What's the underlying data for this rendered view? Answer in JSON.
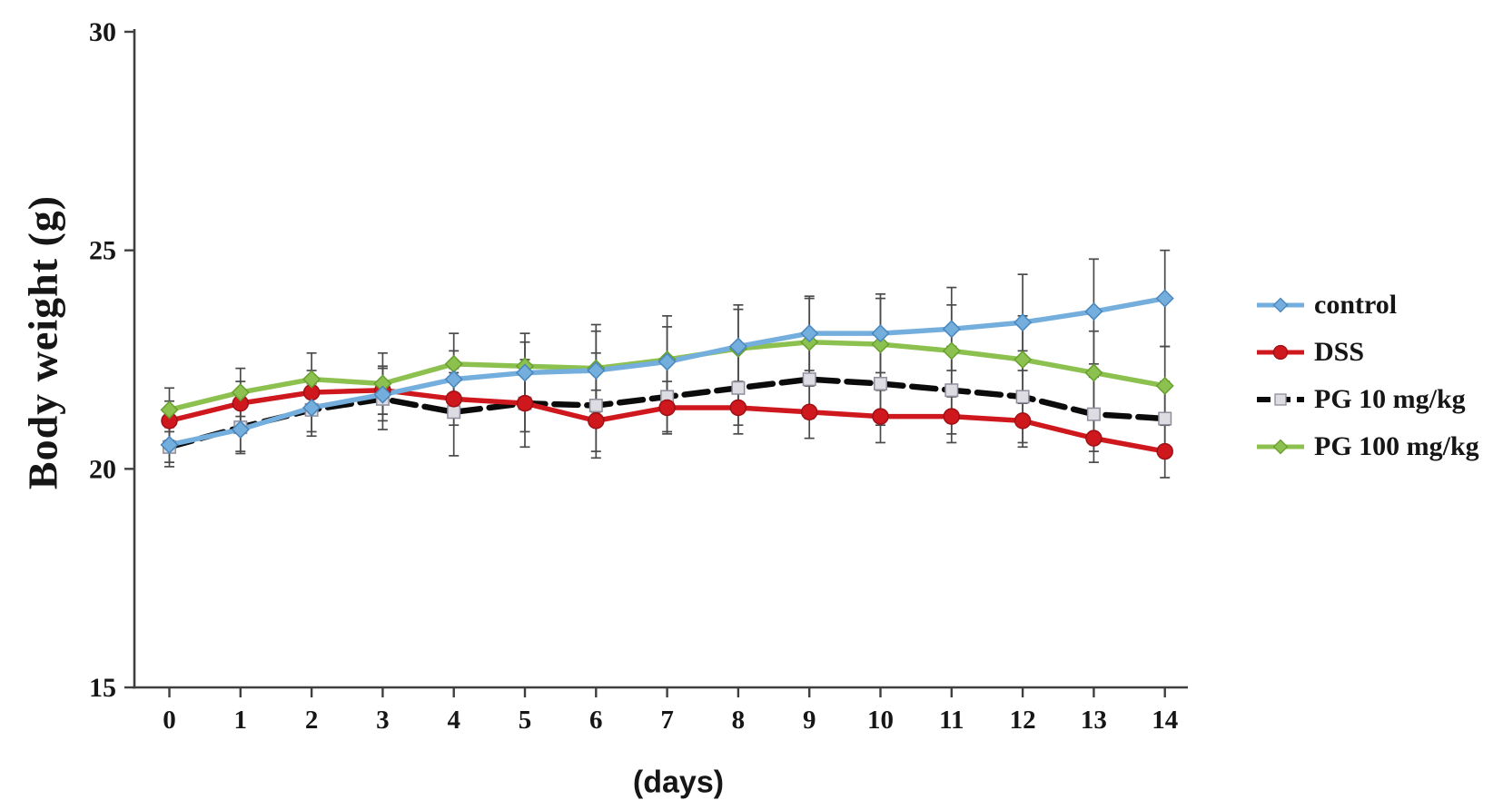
{
  "figure": {
    "background": "#ffffff",
    "axis_color": "#3f3f3f",
    "error_bar_color": "#4a4a4a",
    "text_color": "#161616"
  },
  "chart_data": {
    "type": "line",
    "title": "",
    "ylabel": "Body weight (g)",
    "xlabel": "(days)",
    "x": [
      0,
      1,
      2,
      3,
      4,
      5,
      6,
      7,
      8,
      9,
      10,
      11,
      12,
      13,
      14
    ],
    "x_tick_labels": [
      "0",
      "1",
      "2",
      "3",
      "4",
      "5",
      "6",
      "7",
      "8",
      "9",
      "10",
      "11",
      "12",
      "13",
      "14"
    ],
    "y_ticks": [
      30,
      25,
      20,
      15
    ],
    "ylim": [
      15,
      30
    ],
    "xlim": [
      0,
      14
    ],
    "grid": false,
    "legend_position": "right",
    "error_bars": true,
    "series": [
      {
        "name": "control",
        "marker": "diamond",
        "line_color": "#74AEDC",
        "marker_fill": "#74AEDC",
        "marker_stroke": "#4886BD",
        "dash": null,
        "values": [
          20.55,
          20.9,
          21.4,
          21.7,
          22.05,
          22.2,
          22.25,
          22.45,
          22.8,
          23.1,
          23.1,
          23.2,
          23.35,
          23.6,
          23.9
        ],
        "errors": [
          0.4,
          0.5,
          0.55,
          0.6,
          0.65,
          0.7,
          0.9,
          0.8,
          0.85,
          0.85,
          0.9,
          0.95,
          1.1,
          1.2,
          1.1
        ]
      },
      {
        "name": "DSS",
        "marker": "circle",
        "line_color": "#CE181E",
        "marker_fill": "#CE181E",
        "marker_stroke": "#9E1014",
        "dash": null,
        "values": [
          21.1,
          21.5,
          21.75,
          21.8,
          21.6,
          21.5,
          21.1,
          21.4,
          21.4,
          21.3,
          21.2,
          21.2,
          21.1,
          20.7,
          20.4
        ],
        "errors": [
          0.45,
          0.5,
          0.5,
          0.55,
          0.6,
          0.65,
          0.7,
          0.6,
          0.6,
          0.6,
          0.6,
          0.6,
          0.6,
          0.55,
          0.6
        ]
      },
      {
        "name": "PG 10 mg/kg",
        "marker": "square",
        "line_color": "#0b0b0b",
        "marker_fill": "#DCDCE2",
        "marker_stroke": "#8E8E9C",
        "dash": [
          26,
          10
        ],
        "values": [
          20.5,
          20.95,
          21.35,
          21.6,
          21.3,
          21.5,
          21.45,
          21.65,
          21.85,
          22.05,
          21.95,
          21.8,
          21.65,
          21.25,
          21.15
        ],
        "errors": [
          0.45,
          0.6,
          0.6,
          0.7,
          1.0,
          1.0,
          1.2,
          0.8,
          0.85,
          0.9,
          0.95,
          1.0,
          1.05,
          0.85,
          0.85
        ]
      },
      {
        "name": "PG 100 mg/kg",
        "marker": "diamond",
        "line_color": "#8CC04F",
        "marker_fill": "#8CC04F",
        "marker_stroke": "#67A02E",
        "dash": null,
        "values": [
          21.35,
          21.75,
          22.05,
          21.95,
          22.4,
          22.35,
          22.3,
          22.5,
          22.75,
          22.9,
          22.85,
          22.7,
          22.5,
          22.2,
          21.9
        ],
        "errors": [
          0.5,
          0.55,
          0.6,
          0.7,
          0.7,
          0.75,
          1.0,
          1.0,
          1.0,
          1.0,
          1.05,
          1.05,
          1.0,
          0.95,
          0.9
        ]
      }
    ]
  }
}
